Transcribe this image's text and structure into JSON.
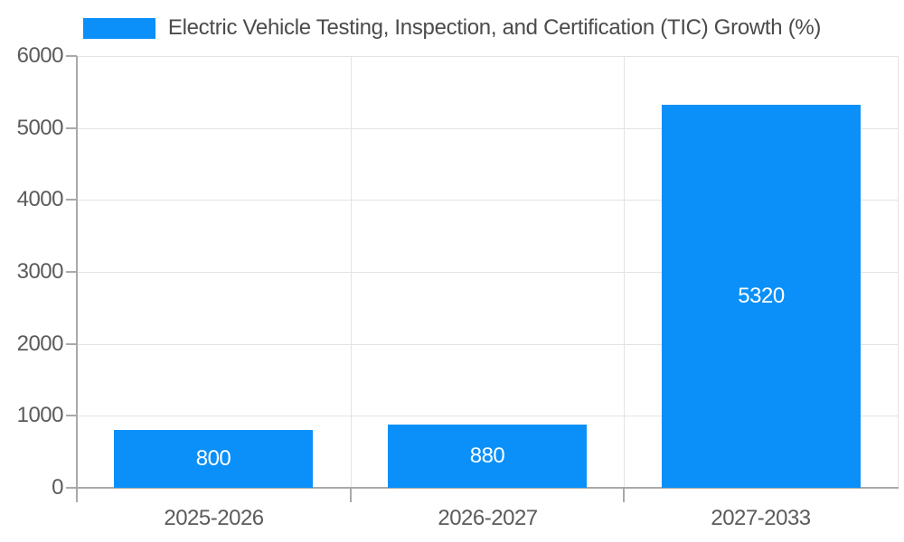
{
  "legend": {
    "label": "Electric Vehicle Testing, Inspection, and Certification (TIC) Growth (%)",
    "swatch_color": "#0a90f8"
  },
  "chart_data": {
    "type": "bar",
    "title": "Electric Vehicle Testing, Inspection, and Certification (TIC) Growth (%)",
    "categories": [
      "2025-2026",
      "2026-2027",
      "2027-2033"
    ],
    "values": [
      800,
      880,
      5320
    ],
    "bar_labels": [
      "800",
      "880",
      "5320"
    ],
    "xlabel": "",
    "ylabel": "",
    "ylim": [
      0,
      6000
    ],
    "yticks": [
      0,
      1000,
      2000,
      3000,
      4000,
      5000,
      6000
    ],
    "grid": true,
    "legend_position": "top-center",
    "colors": {
      "bar": "#0a90f8",
      "bar_label": "#ffffff",
      "axis_line": "#a9a9a9",
      "gridline": "#e3e3e3",
      "tick_label": "#5b5b5b",
      "legend_text": "#4b4b4b"
    }
  }
}
